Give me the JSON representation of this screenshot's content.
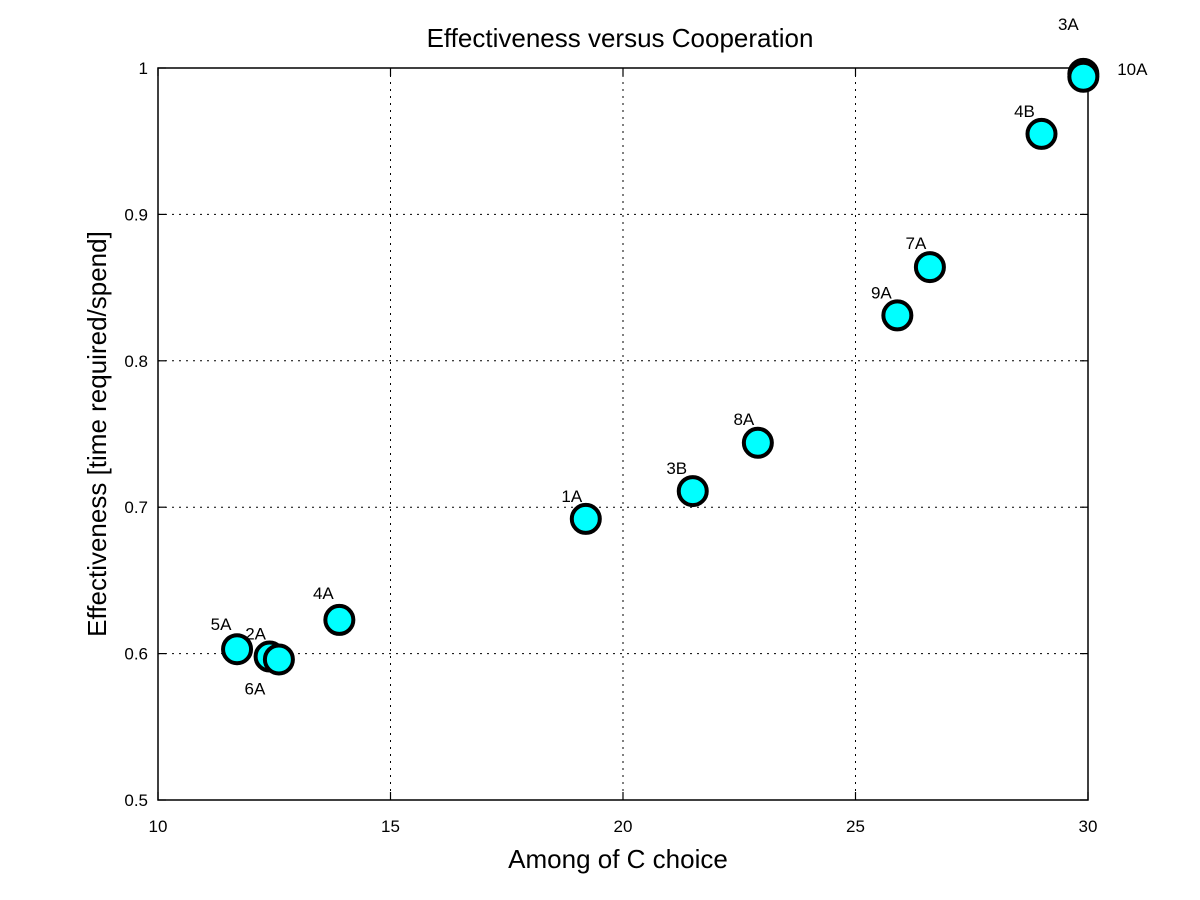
{
  "chart_data": {
    "type": "scatter",
    "title": "Effectiveness versus Cooperation",
    "xlabel": "Among of C choice",
    "ylabel": "Effectiveness [time required/spend]",
    "xlim": [
      10,
      30
    ],
    "ylim": [
      0.5,
      1
    ],
    "xticks": [
      10,
      15,
      20,
      25,
      30
    ],
    "yticks": [
      0.5,
      0.6,
      0.7,
      0.8,
      0.9,
      1
    ],
    "xtick_labels": [
      "10",
      "15",
      "20",
      "25",
      "30"
    ],
    "ytick_labels": [
      "0.5",
      "0.6",
      "0.7",
      "0.8",
      "0.9",
      "1"
    ],
    "grid": true,
    "marker_color": "#00ffff",
    "marker_edge_color": "#000000",
    "points": [
      {
        "label": "5A",
        "x": 11.7,
        "y": 0.603
      },
      {
        "label": "2A",
        "x": 12.4,
        "y": 0.598
      },
      {
        "label": "6A",
        "x": 12.6,
        "y": 0.596
      },
      {
        "label": "4A",
        "x": 13.9,
        "y": 0.623
      },
      {
        "label": "1A",
        "x": 19.2,
        "y": 0.692
      },
      {
        "label": "3B",
        "x": 21.5,
        "y": 0.711
      },
      {
        "label": "8A",
        "x": 22.9,
        "y": 0.744
      },
      {
        "label": "9A",
        "x": 25.9,
        "y": 0.831
      },
      {
        "label": "7A",
        "x": 26.6,
        "y": 0.864
      },
      {
        "label": "4B",
        "x": 29.0,
        "y": 0.955
      },
      {
        "label": "3A",
        "x": 29.9,
        "y": 0.996
      },
      {
        "label": "10A",
        "x": 29.9,
        "y": 0.994
      }
    ]
  }
}
